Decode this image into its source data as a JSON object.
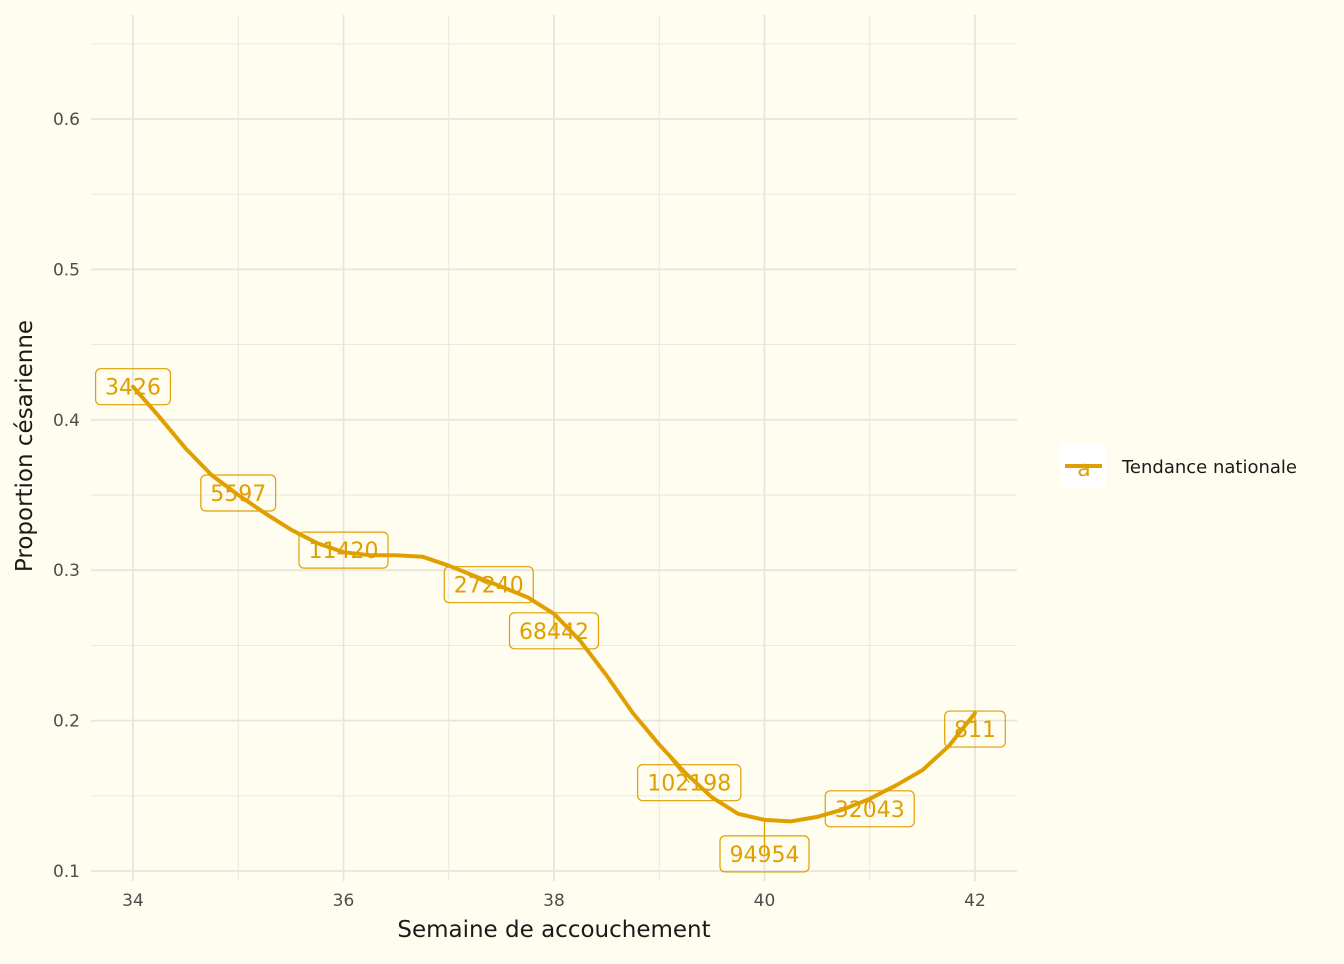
{
  "chart_data": {
    "type": "line",
    "title": "",
    "xlabel": "Semaine de accouchement",
    "ylabel": "Proportion césarienne",
    "xlim": [
      33.6,
      42.4
    ],
    "ylim": [
      0.1,
      0.65
    ],
    "x_ticks": [
      34,
      36,
      38,
      40,
      42
    ],
    "x_tick_labels": [
      "34",
      "36",
      "38",
      "40",
      "42"
    ],
    "y_ticks": [
      0.1,
      0.2,
      0.3,
      0.4,
      0.5,
      0.6
    ],
    "y_tick_labels": [
      "0.1",
      "0.2",
      "0.3",
      "0.4",
      "0.5",
      "0.6"
    ],
    "grid": true,
    "legend_position": "right",
    "colors": {
      "background": "#fffdf0",
      "grid": "#e6e6e0",
      "series": "#e09f00"
    },
    "series": [
      {
        "name": "Tendance nationale",
        "x": [
          34,
          34.25,
          34.5,
          34.75,
          35,
          35.25,
          35.5,
          35.75,
          36,
          36.25,
          36.5,
          36.75,
          37,
          37.25,
          37.5,
          37.75,
          38,
          38.25,
          38.5,
          38.75,
          39,
          39.25,
          39.5,
          39.75,
          40,
          40.25,
          40.5,
          40.75,
          41,
          41.25,
          41.5,
          41.75,
          42
        ],
        "values": [
          0.422,
          0.402,
          0.381,
          0.363,
          0.35,
          0.338,
          0.327,
          0.318,
          0.312,
          0.31,
          0.31,
          0.309,
          0.303,
          0.296,
          0.289,
          0.282,
          0.271,
          0.253,
          0.23,
          0.205,
          0.184,
          0.165,
          0.149,
          0.138,
          0.134,
          0.133,
          0.136,
          0.141,
          0.148,
          0.157,
          0.167,
          0.183,
          0.205
        ]
      }
    ],
    "labels": [
      {
        "text": "3426",
        "x": 34,
        "y": 0.422
      },
      {
        "text": "5597",
        "x": 35,
        "y": 0.35
      },
      {
        "text": "11420",
        "x": 36,
        "y": 0.312
      },
      {
        "text": "27240",
        "x": 37,
        "y": 0.303
      },
      {
        "text": "68442",
        "x": 38,
        "y": 0.271
      },
      {
        "text": "102198",
        "x": 39,
        "y": 0.184
      },
      {
        "text": "94954",
        "x": 40,
        "y": 0.134
      },
      {
        "text": "32043",
        "x": 41,
        "y": 0.148
      },
      {
        "text": "811",
        "x": 42,
        "y": 0.205
      }
    ],
    "legend": {
      "key_glyph": "a",
      "label": "Tendance nationale"
    }
  }
}
